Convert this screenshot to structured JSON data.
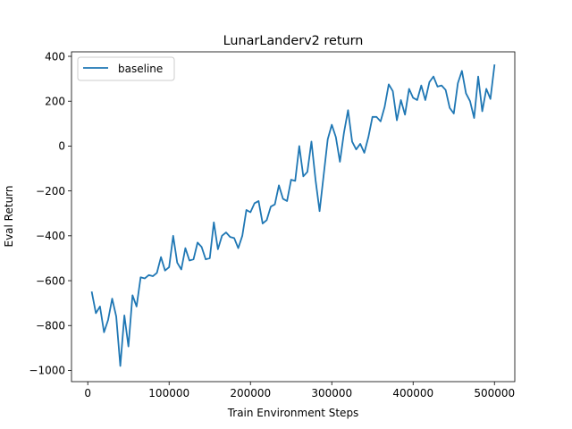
{
  "chart_data": {
    "type": "line",
    "title": "LunarLanderv2 return",
    "xlabel": "Train Environment Steps",
    "ylabel": "Eval Return",
    "xlim": [
      -20000,
      525000
    ],
    "ylim": [
      -1050,
      420
    ],
    "xticks": [
      0,
      100000,
      200000,
      300000,
      400000,
      500000
    ],
    "xtick_labels": [
      "0",
      "100000",
      "200000",
      "300000",
      "400000",
      "500000"
    ],
    "yticks": [
      -1000,
      -800,
      -600,
      -400,
      -200,
      0,
      200,
      400
    ],
    "ytick_labels": [
      "−1000",
      "−800",
      "−600",
      "−400",
      "−200",
      "0",
      "200",
      "400"
    ],
    "grid": false,
    "legend": {
      "position": "top-left",
      "entries": [
        "baseline"
      ]
    },
    "series": [
      {
        "name": "baseline",
        "color": "#1f77b4",
        "x": [
          5000,
          10000,
          15000,
          20000,
          25000,
          30000,
          35000,
          40000,
          45000,
          50000,
          55000,
          60000,
          65000,
          70000,
          75000,
          80000,
          85000,
          90000,
          95000,
          100000,
          105000,
          110000,
          115000,
          120000,
          125000,
          130000,
          135000,
          140000,
          145000,
          150000,
          155000,
          160000,
          165000,
          170000,
          175000,
          180000,
          185000,
          190000,
          195000,
          200000,
          205000,
          210000,
          215000,
          220000,
          225000,
          230000,
          235000,
          240000,
          245000,
          250000,
          255000,
          260000,
          265000,
          270000,
          275000,
          280000,
          285000,
          290000,
          295000,
          300000,
          305000,
          310000,
          315000,
          320000,
          325000,
          330000,
          335000,
          340000,
          345000,
          350000,
          355000,
          360000,
          365000,
          370000,
          375000,
          380000,
          385000,
          390000,
          395000,
          400000,
          405000,
          410000,
          415000,
          420000,
          425000,
          430000,
          435000,
          440000,
          445000,
          450000,
          455000,
          460000,
          465000,
          470000,
          475000,
          480000,
          485000,
          490000,
          495000,
          500000
        ],
        "y": [
          -652,
          -745,
          -715,
          -830,
          -775,
          -680,
          -760,
          -980,
          -755,
          -893,
          -665,
          -715,
          -585,
          -590,
          -575,
          -580,
          -565,
          -495,
          -555,
          -540,
          -400,
          -520,
          -550,
          -455,
          -510,
          -505,
          -430,
          -450,
          -505,
          -500,
          -340,
          -460,
          -400,
          -385,
          -405,
          -410,
          -455,
          -400,
          -285,
          -295,
          -255,
          -245,
          -345,
          -330,
          -270,
          -260,
          -175,
          -235,
          -245,
          -150,
          -155,
          0,
          -135,
          -115,
          20,
          -150,
          -290,
          -130,
          30,
          95,
          40,
          -70,
          60,
          160,
          20,
          -15,
          10,
          -30,
          40,
          130,
          130,
          110,
          175,
          275,
          245,
          115,
          205,
          140,
          255,
          215,
          205,
          270,
          205,
          285,
          310,
          265,
          270,
          250,
          170,
          145,
          280,
          335,
          235,
          200,
          125,
          310,
          155,
          255,
          210,
          360
        ]
      }
    ]
  }
}
